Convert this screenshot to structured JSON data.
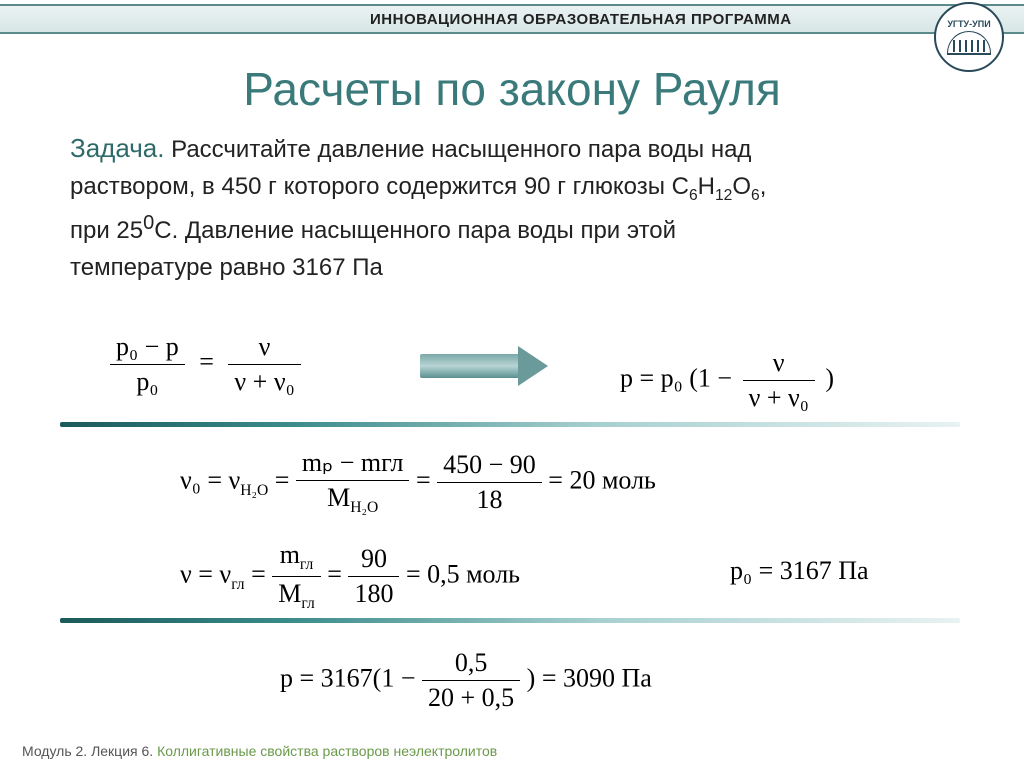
{
  "header": {
    "program": "ИННОВАЦИОННАЯ ОБРАЗОВАТЕЛЬНАЯ ПРОГРАММА"
  },
  "logo": {
    "text": "УГТУ-УПИ"
  },
  "title": "Расчеты по закону Рауля",
  "problem": {
    "lead": "Задача.",
    "body_l1": "Рассчитайте давление насыщенного пара воды над",
    "body_l2": "раствором, в 450 г которого содержится 90 г глюкозы C",
    "formula_tail": "H",
    "formula_tail2": "O",
    "sub_c": "6",
    "sub_h": "12",
    "sub_o": "6",
    "punct": ",",
    "body_l3": "при 25",
    "deg": "0",
    "body_l3b": "С. Давление насыщенного пара воды при этой",
    "body_l4": "температуре равно 3167 Па"
  },
  "formulas": {
    "left_num": "p₀ − p",
    "left_den": "p₀",
    "eq": "=",
    "nu": "ν",
    "nu_sum": "ν + ν₀",
    "right_prefix": "p = p₀ (1 −",
    "right_suffix": ")"
  },
  "calc1": {
    "lhs": "ν₀ = ν",
    "sub_h2o": "H₂O",
    "eq": " = ",
    "f1_num": "mₚ − mгл",
    "f1_den_m": "M",
    "f2_num": "450 − 90",
    "f2_den": "18",
    "result": " = 20 моль"
  },
  "calc2": {
    "lhs": "ν = ν",
    "sub_gl": "гл",
    "eq": " = ",
    "f1_num_m": "m",
    "f1_den_m": "M",
    "f2_num": "90",
    "f2_den": "180",
    "result": " = 0,5 моль"
  },
  "p0": {
    "label": "p₀ = 3167 Па"
  },
  "calc3": {
    "prefix": "p = 3167(1 − ",
    "num": "0,5",
    "den": "20 + 0,5",
    "suffix": ") = 3090 Па"
  },
  "footer": {
    "module": "Модуль 2. Лекция 6.",
    "lecture": "Коллигативные свойства растворов неэлектролитов"
  },
  "colors": {
    "title": "#3a7a7a",
    "accent_dark": "#1a5a5a",
    "accent_light": "#a8d0d0",
    "text": "#222222",
    "footer_green": "#6a9a4a"
  }
}
